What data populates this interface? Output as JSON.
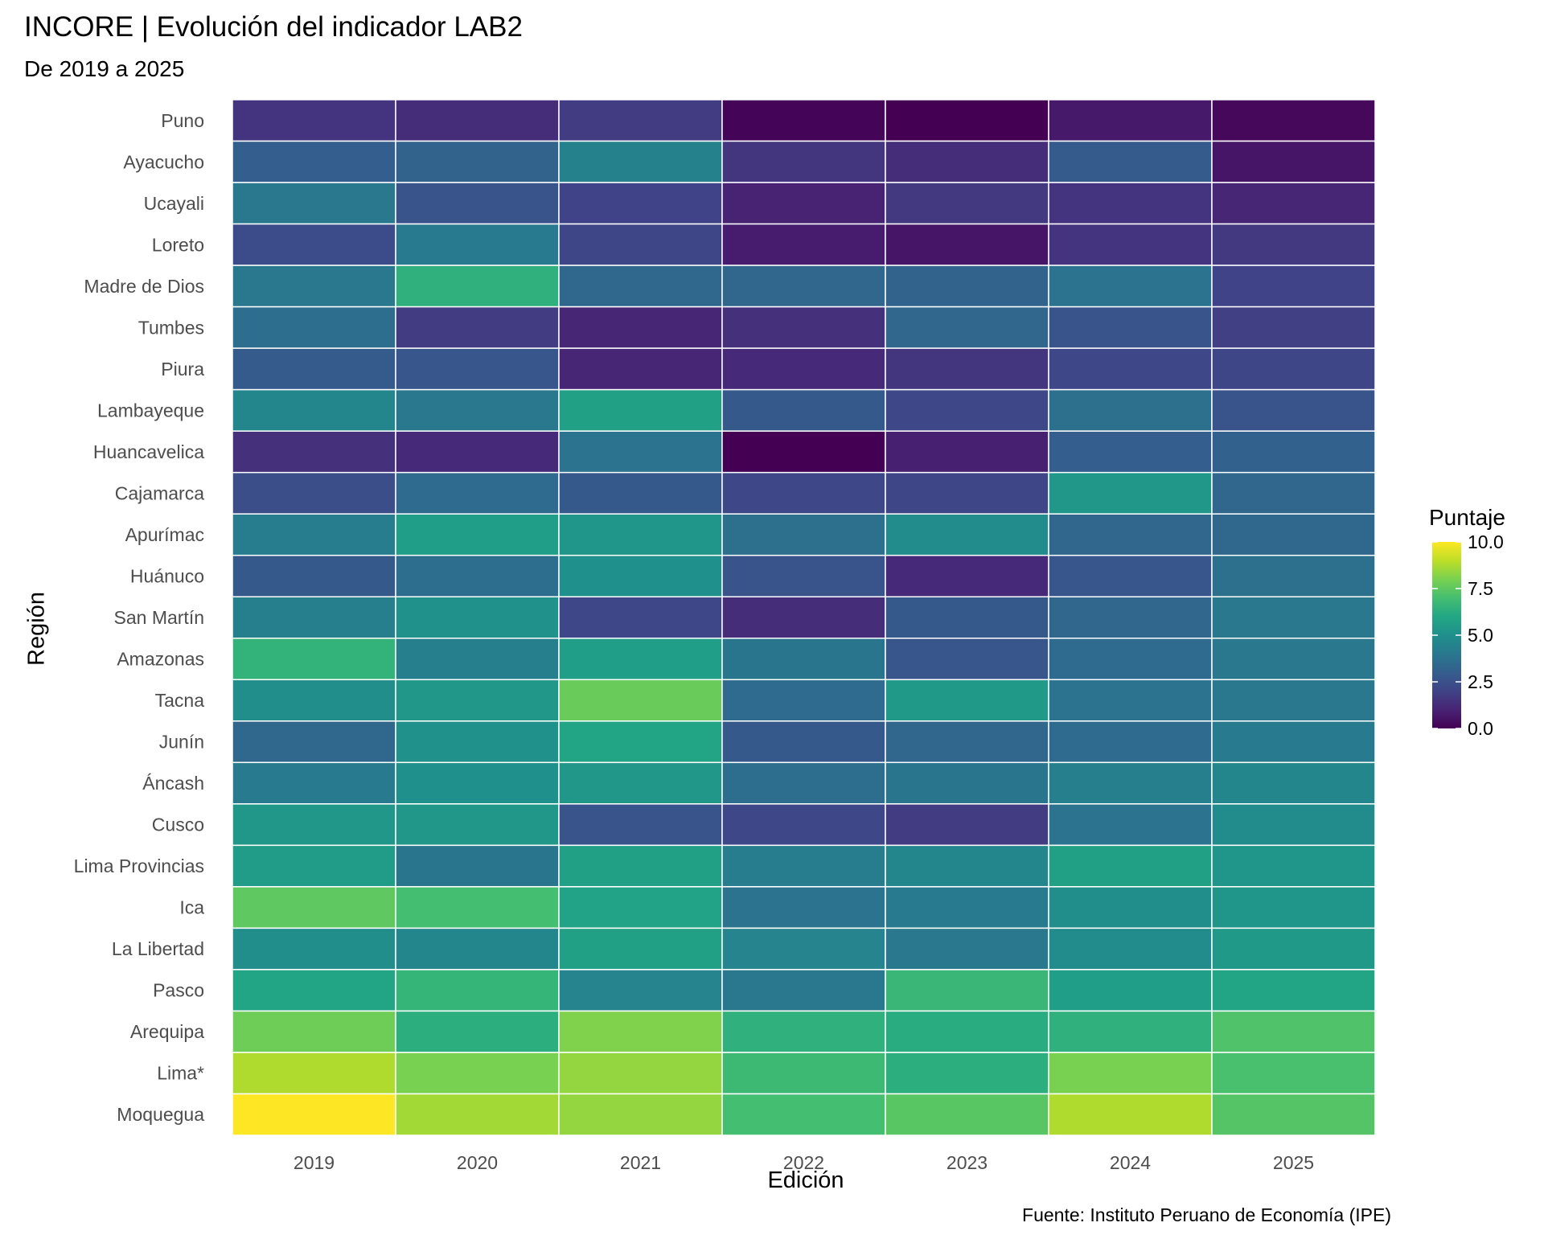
{
  "chart_data": {
    "type": "heatmap",
    "title": "INCORE | Evolución del indicador LAB2",
    "subtitle": "De 2019 a 2025",
    "caption": "Fuente: Instituto Peruano de Economía (IPE)",
    "xlabel": "Edición",
    "ylabel": "Región",
    "legend_title": "Puntaje",
    "legend_position": "right",
    "colorscale": "viridis",
    "zlim": [
      0,
      10
    ],
    "legend_ticks": [
      "10.0",
      "7.5",
      "5.0",
      "2.5",
      "0.0"
    ],
    "x": [
      "2019",
      "2020",
      "2021",
      "2022",
      "2023",
      "2024",
      "2025"
    ],
    "y": [
      "Puno",
      "Ayacucho",
      "Ucayali",
      "Loreto",
      "Madre de Dios",
      "Tumbes",
      "Piura",
      "Lambayeque",
      "Huancavelica",
      "Cajamarca",
      "Apurímac",
      "Huánuco",
      "San Martín",
      "Amazonas",
      "Tacna",
      "Junín",
      "Áncash",
      "Cusco",
      "Lima Provincias",
      "Ica",
      "La Libertad",
      "Pasco",
      "Arequipa",
      "Lima*",
      "Moquegua"
    ],
    "values": [
      [
        1.5,
        1.3,
        1.8,
        0.1,
        0.0,
        0.7,
        0.2
      ],
      [
        3.0,
        3.2,
        4.4,
        1.6,
        1.3,
        2.9,
        0.6
      ],
      [
        4.0,
        2.6,
        2.0,
        1.0,
        1.7,
        1.5,
        1.1
      ],
      [
        2.3,
        4.1,
        2.1,
        0.8,
        0.6,
        1.5,
        1.7
      ],
      [
        4.0,
        6.4,
        3.4,
        3.3,
        3.2,
        3.8,
        2.0
      ],
      [
        3.6,
        1.8,
        1.1,
        1.4,
        3.3,
        2.6,
        1.9
      ],
      [
        2.9,
        2.7,
        1.1,
        1.2,
        1.6,
        2.2,
        2.1
      ],
      [
        4.6,
        4.0,
        5.7,
        2.8,
        2.2,
        3.7,
        2.6
      ],
      [
        1.4,
        1.2,
        3.8,
        0.0,
        0.9,
        3.0,
        3.1
      ],
      [
        2.4,
        3.5,
        2.8,
        2.2,
        2.1,
        5.3,
        3.3
      ],
      [
        4.2,
        5.6,
        5.2,
        3.7,
        4.8,
        3.3,
        3.4
      ],
      [
        2.8,
        3.6,
        5.0,
        2.6,
        1.2,
        2.7,
        3.7
      ],
      [
        4.3,
        5.1,
        2.2,
        1.3,
        2.8,
        3.3,
        4.0
      ],
      [
        6.5,
        4.3,
        5.6,
        3.9,
        2.7,
        3.5,
        4.0
      ],
      [
        4.9,
        5.3,
        7.7,
        3.5,
        5.4,
        3.8,
        4.0
      ],
      [
        3.4,
        5.1,
        5.9,
        2.8,
        3.3,
        3.5,
        4.1
      ],
      [
        4.1,
        5.0,
        5.3,
        3.6,
        3.9,
        4.3,
        4.6
      ],
      [
        5.3,
        5.3,
        2.6,
        2.2,
        1.8,
        3.8,
        4.8
      ],
      [
        5.5,
        3.9,
        5.7,
        4.2,
        4.6,
        5.7,
        5.2
      ],
      [
        7.5,
        7.0,
        5.8,
        3.8,
        4.1,
        4.9,
        5.2
      ],
      [
        4.9,
        4.6,
        5.7,
        4.5,
        4.0,
        4.8,
        5.4
      ],
      [
        5.9,
        6.6,
        4.5,
        4.0,
        6.7,
        5.6,
        5.9
      ],
      [
        7.8,
        6.3,
        8.1,
        6.4,
        6.2,
        6.4,
        7.2
      ],
      [
        8.8,
        8.0,
        8.4,
        6.8,
        6.3,
        8.0,
        7.1
      ],
      [
        10.0,
        8.6,
        8.4,
        7.0,
        7.4,
        8.8,
        7.3
      ]
    ]
  }
}
